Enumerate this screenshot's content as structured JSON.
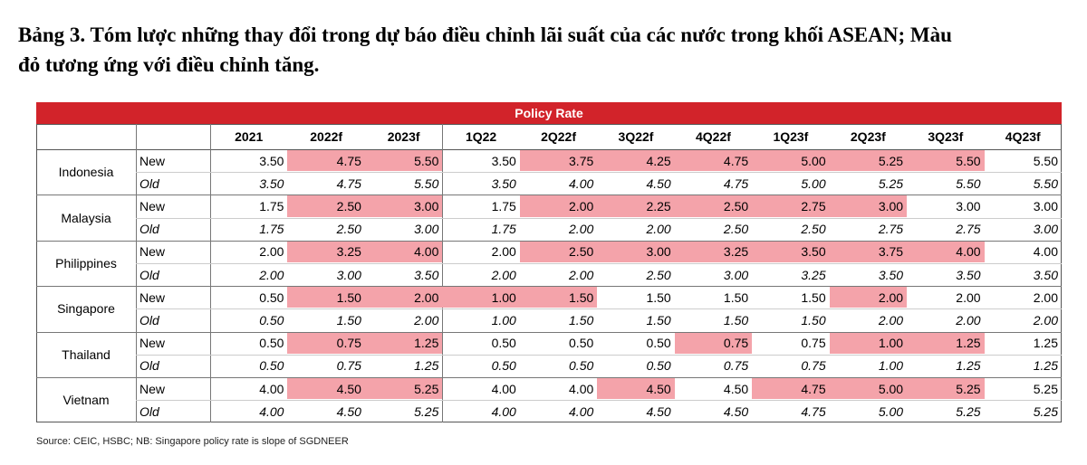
{
  "title": "Bảng 3. Tóm lược những thay đổi trong dự báo điều chỉnh lãi suất của các nước trong khối ASEAN; Màu đỏ tương ứng với điều chỉnh tăng.",
  "table": {
    "group_header": "Policy Rate",
    "header_color": "#d2232a",
    "highlight_color": "#f4a3aa",
    "columns": [
      "2021",
      "2022f",
      "2023f",
      "1Q22",
      "2Q22f",
      "3Q22f",
      "4Q22f",
      "1Q23f",
      "2Q23f",
      "3Q23f",
      "4Q23f"
    ],
    "rows": [
      {
        "country": "Indonesia",
        "new": {
          "label": "New",
          "values": [
            "3.50",
            "4.75",
            "5.50",
            "3.50",
            "3.75",
            "4.25",
            "4.75",
            "5.00",
            "5.25",
            "5.50",
            "5.50"
          ],
          "highlight": [
            false,
            true,
            true,
            false,
            true,
            true,
            true,
            true,
            true,
            true,
            false
          ]
        },
        "old": {
          "label": "Old",
          "values": [
            "3.50",
            "4.75",
            "5.50",
            "3.50",
            "4.00",
            "4.50",
            "4.75",
            "5.00",
            "5.25",
            "5.50",
            "5.50"
          ]
        }
      },
      {
        "country": "Malaysia",
        "new": {
          "label": "New",
          "values": [
            "1.75",
            "2.50",
            "3.00",
            "1.75",
            "2.00",
            "2.25",
            "2.50",
            "2.75",
            "3.00",
            "3.00",
            "3.00"
          ],
          "highlight": [
            false,
            true,
            true,
            false,
            true,
            true,
            true,
            true,
            true,
            false,
            false
          ]
        },
        "old": {
          "label": "Old",
          "values": [
            "1.75",
            "2.50",
            "3.00",
            "1.75",
            "2.00",
            "2.00",
            "2.50",
            "2.50",
            "2.75",
            "2.75",
            "3.00"
          ]
        }
      },
      {
        "country": "Philippines",
        "new": {
          "label": "New",
          "values": [
            "2.00",
            "3.25",
            "4.00",
            "2.00",
            "2.50",
            "3.00",
            "3.25",
            "3.50",
            "3.75",
            "4.00",
            "4.00"
          ],
          "highlight": [
            false,
            true,
            true,
            false,
            true,
            true,
            true,
            true,
            true,
            true,
            false
          ]
        },
        "old": {
          "label": "Old",
          "values": [
            "2.00",
            "3.00",
            "3.50",
            "2.00",
            "2.00",
            "2.50",
            "3.00",
            "3.25",
            "3.50",
            "3.50",
            "3.50"
          ]
        }
      },
      {
        "country": "Singapore",
        "new": {
          "label": "New",
          "values": [
            "0.50",
            "1.50",
            "2.00",
            "1.00",
            "1.50",
            "1.50",
            "1.50",
            "1.50",
            "2.00",
            "2.00",
            "2.00"
          ],
          "highlight": [
            false,
            true,
            true,
            true,
            true,
            false,
            false,
            false,
            true,
            false,
            false
          ]
        },
        "old": {
          "label": "Old",
          "values": [
            "0.50",
            "1.50",
            "2.00",
            "1.00",
            "1.50",
            "1.50",
            "1.50",
            "1.50",
            "2.00",
            "2.00",
            "2.00"
          ]
        }
      },
      {
        "country": "Thailand",
        "new": {
          "label": "New",
          "values": [
            "0.50",
            "0.75",
            "1.25",
            "0.50",
            "0.50",
            "0.50",
            "0.75",
            "0.75",
            "1.00",
            "1.25",
            "1.25"
          ],
          "highlight": [
            false,
            true,
            true,
            false,
            false,
            false,
            true,
            false,
            true,
            true,
            false
          ]
        },
        "old": {
          "label": "Old",
          "values": [
            "0.50",
            "0.75",
            "1.25",
            "0.50",
            "0.50",
            "0.50",
            "0.75",
            "0.75",
            "1.00",
            "1.25",
            "1.25"
          ]
        }
      },
      {
        "country": "Vietnam",
        "new": {
          "label": "New",
          "values": [
            "4.00",
            "4.50",
            "5.25",
            "4.00",
            "4.00",
            "4.50",
            "4.50",
            "4.75",
            "5.00",
            "5.25",
            "5.25"
          ],
          "highlight": [
            false,
            true,
            true,
            false,
            false,
            true,
            false,
            true,
            true,
            true,
            false
          ]
        },
        "old": {
          "label": "Old",
          "values": [
            "4.00",
            "4.50",
            "5.25",
            "4.00",
            "4.00",
            "4.50",
            "4.50",
            "4.75",
            "5.00",
            "5.25",
            "5.25"
          ]
        }
      }
    ]
  },
  "source": "Source: CEIC, HSBC; NB: Singapore policy rate is slope of SGDNEER"
}
